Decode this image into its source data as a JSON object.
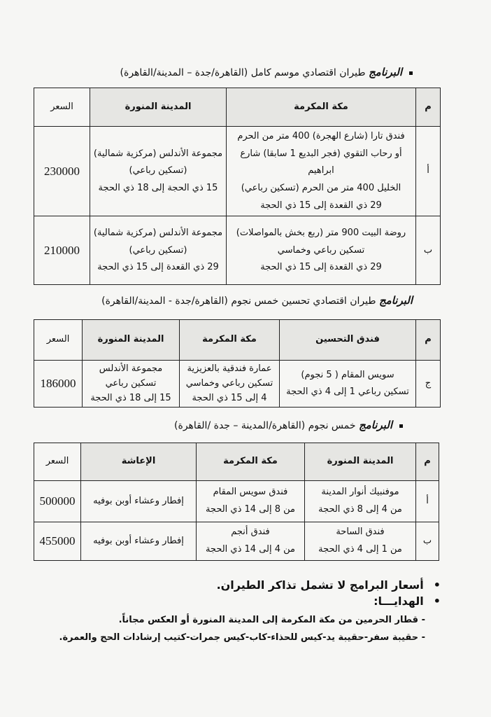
{
  "program1": {
    "title_bold": "البرنامج",
    "title_rest": "طيران اقتصادي موسم كامل (القاهرة/جدة – المدينة/القاهرة)",
    "headers": {
      "m": "م",
      "makkah": "مكة المكرمة",
      "madina": "المدينة المنورة",
      "price": "السعر"
    },
    "rows": [
      {
        "m": "أ",
        "makkah": [
          "فندق تارا (شارع الهجرة) 400 متر من الحرم",
          "أو رحاب التقوي (فجر البديع 1 سابقا) شارع ابراهيم",
          "الخليل 400 متر من الحرم (تسكين رباعي)",
          "29 ذي القعدة إلى 15 ذي الحجة"
        ],
        "madina": [
          "مجموعة الأندلس (مركزية شمالية)",
          "(تسكين رباعي)",
          "15 ذي الحجة إلى 18 ذي الحجة"
        ],
        "price": "230000"
      },
      {
        "m": "ب",
        "makkah": [
          "روضة البيت 900 متر (ربع بخش بالمواصلات)",
          "تسكين رباعي وخماسي",
          "29 ذي القعدة إلى 15 ذي الحجة"
        ],
        "madina": [
          "مجموعة الأندلس (مركزية شمالية)",
          "(تسكين رباعي)",
          "29 ذي القعدة إلى 15 ذي الحجة"
        ],
        "price": "210000"
      }
    ]
  },
  "program2": {
    "title_bold": "البرنامج",
    "title_rest": "طيران اقتصادي تحسين خمس نجوم (القاهرة/جدة - المدينة/القاهرة)",
    "headers": {
      "m": "م",
      "hotel": "فندق التحسين",
      "makkah": "مكة المكرمة",
      "madina": "المدينة المنورة",
      "price": "السعر"
    },
    "rows": [
      {
        "m": "ج",
        "hotel": [
          "سويس المقام ( 5 نجوم)",
          "تسكين رباعي 1 إلى 4 ذي الحجة"
        ],
        "makkah": [
          "عمارة فندقية بالعزيزية",
          "تسكين رباعي وخماسي",
          "4 إلى 15 ذي الحجة"
        ],
        "madina": [
          "مجموعة الأندلس",
          "تسكين رباعي",
          "15 إلى 18 ذي الحجة"
        ],
        "price": "186000"
      }
    ]
  },
  "program3": {
    "title_bold": "البرنامج",
    "title_rest": "خمس نجوم (القاهرة/المدينة – جدة /القاهرة)",
    "headers": {
      "m": "م",
      "madina": "المدينة المنورة",
      "makkah": "مكة المكرمة",
      "food": "الإعاشة",
      "price": "السعر"
    },
    "rows": [
      {
        "m": "أ",
        "madina": [
          "موفنبيك أنوار المدينة",
          "من 4 إلى 8 ذي الحجة"
        ],
        "makkah": [
          "فندق سويس المقام",
          "من 8 إلى 14 ذي الحجة"
        ],
        "food": "إفطار وعشاء أوبن بوفيه",
        "price": "500000"
      },
      {
        "m": "ب",
        "madina": [
          "فندق الساحة",
          "من 1 إلى 4 ذي الحجة"
        ],
        "makkah": [
          "فندق أنجم",
          "من 4 إلى 14 ذي الحجة"
        ],
        "food": "إفطار وعشاء أوبن بوفيه",
        "price": "455000"
      }
    ]
  },
  "notes": {
    "bullets": [
      "أسعار البرامج لا تشمل تذاكر الطيران.",
      "الهدايـــا:"
    ],
    "gifts": [
      "قطار الحرمين من مكة المكرمة إلى المدينة المنورة أو العكس مجاناً.",
      "حقيبة سفر-حقيبة يد-كيس للحذاء-كاب-كيس جمرات-كتيب إرشادات الحج والعمرة."
    ]
  }
}
